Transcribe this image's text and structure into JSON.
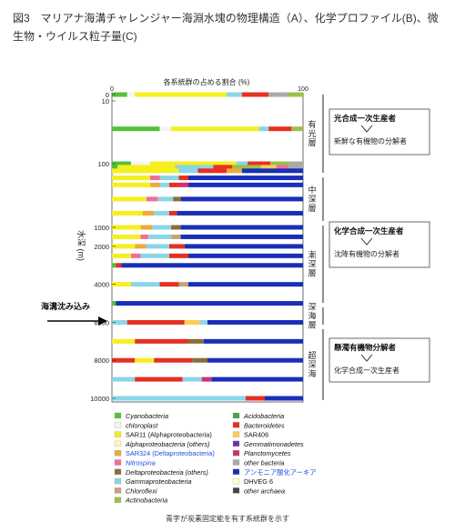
{
  "caption": "図3　マリアナ海溝チャレンジャー海淵水塊の物理構造（A）、化学プロファイル(B)、微生物・ウイルス粒子量(C)",
  "footnote": "青字が炭素固定能を有す系統群を示す",
  "colors": {
    "Cyanobacteria": "#53c23a",
    "chloroplast": "#f5f5f5",
    "SAR11 (Alphaproteobacteria)": "#f5ef1e",
    "Alphaproteobacteria (others)": "#fff9a8",
    "SAR324 (Deltaproteobacteria)": "#f2a83a",
    "Nitrospina": "#f26c9a",
    "Deltaproteobacteria (others)": "#8a6d3b",
    "Gammaproteobacteria": "#8ad6e8",
    "Chloroflexi": "#c9a27a",
    "Actinobacteria": "#9bc04a",
    "Acidobacteria": "#4ea34a",
    "Bacteroidetes": "#e63020",
    "SAR406": "#ffcc55",
    "Gemmatimonadetes": "#7030a0",
    "Planctomycetes": "#d03070",
    "other bacteria": "#aaaaaa",
    "アンモニア酸化アーキア": "#1a2fb8",
    "DHVEG 6": "#ffffcc",
    "other archaea": "#444444"
  },
  "chart_data": {
    "type": "bar",
    "orientation": "horizontal-stacked",
    "title": "各系統群の占める割合 (%)",
    "xlim": [
      0,
      100
    ],
    "x_ticks": [
      0,
      100
    ],
    "ylabel": "水深 (m)",
    "y_ticks": [
      "0",
      "10",
      "100",
      "1000",
      "2000",
      "4000",
      "6000",
      "8000",
      "10000"
    ],
    "depth_marker": "海溝沈み込み",
    "zones": [
      {
        "name": "有光層",
        "box_title": "光合成一次生産者",
        "box_text": "新鮮な有機物の分解者"
      },
      {
        "name": "中深層",
        "box_title": "",
        "box_text": ""
      },
      {
        "name": "漸深層",
        "box_title": "化学合成一次生産者",
        "box_text": "沈降有機物の分解者"
      },
      {
        "name": "深海層",
        "box_title": "",
        "box_text": ""
      },
      {
        "name": "超深海",
        "box_title": "懸濁有機物分解者",
        "box_text": "化学合成一次生産者"
      }
    ],
    "legend": [
      {
        "label": "Cyanobacteria",
        "carbon_fixing": false
      },
      {
        "label": "chloroplast",
        "carbon_fixing": false
      },
      {
        "label": "SAR11 (Alphaproteobacteria)",
        "carbon_fixing": false
      },
      {
        "label": "Alphaproteobacteria (others)",
        "carbon_fixing": false
      },
      {
        "label": "SAR324 (Deltaproteobacteria)",
        "carbon_fixing": true
      },
      {
        "label": "Nitrospina",
        "carbon_fixing": true
      },
      {
        "label": "Deltaproteobacteria (others)",
        "carbon_fixing": false
      },
      {
        "label": "Gammaproteobacteria",
        "carbon_fixing": false
      },
      {
        "label": "Chloroflexi",
        "carbon_fixing": false
      },
      {
        "label": "Actinobacteria",
        "carbon_fixing": false
      },
      {
        "label": "Acidobacteria",
        "carbon_fixing": false
      },
      {
        "label": "Bacteroidetes",
        "carbon_fixing": false
      },
      {
        "label": "SAR406",
        "carbon_fixing": false
      },
      {
        "label": "Gemmatimonadetes",
        "carbon_fixing": false
      },
      {
        "label": "Planctomycetes",
        "carbon_fixing": false
      },
      {
        "label": "other bacteria",
        "carbon_fixing": false
      },
      {
        "label": "アンモニア酸化アーキア",
        "carbon_fixing": true
      },
      {
        "label": "DHVEG 6",
        "carbon_fixing": false
      },
      {
        "label": "other archaea",
        "carbon_fixing": false
      }
    ],
    "samples": [
      {
        "depth": 0,
        "segments": [
          [
            "Cyanobacteria",
            8
          ],
          [
            "chloroplast",
            4
          ],
          [
            "SAR11 (Alphaproteobacteria)",
            48
          ],
          [
            "Gammaproteobacteria",
            8
          ],
          [
            "Bacteroidetes",
            14
          ],
          [
            "other bacteria",
            10
          ],
          [
            "Actinobacteria",
            8
          ]
        ]
      },
      {
        "depth": 50,
        "segments": [
          [
            "Cyanobacteria",
            25
          ],
          [
            "chloroplast",
            6
          ],
          [
            "SAR11 (Alphaproteobacteria)",
            46
          ],
          [
            "Gammaproteobacteria",
            5
          ],
          [
            "Bacteroidetes",
            12
          ],
          [
            "Actinobacteria",
            6
          ]
        ]
      },
      {
        "depth": 100,
        "segments": [
          [
            "Cyanobacteria",
            10
          ],
          [
            "chloroplast",
            10
          ],
          [
            "SAR11 (Alphaproteobacteria)",
            45
          ],
          [
            "Gammaproteobacteria",
            6
          ],
          [
            "Bacteroidetes",
            12
          ],
          [
            "Actinobacteria",
            10
          ],
          [
            "other bacteria",
            7
          ]
        ]
      },
      {
        "depth": 150,
        "segments": [
          [
            "Cyanobacteria",
            3
          ],
          [
            "SAR11 (Alphaproteobacteria)",
            30
          ],
          [
            "Gammaproteobacteria",
            20
          ],
          [
            "Bacteroidetes",
            10
          ],
          [
            "Actinobacteria",
            15
          ],
          [
            "SAR406",
            8
          ],
          [
            "Nitrospina",
            6
          ],
          [
            "other bacteria",
            8
          ]
        ]
      },
      {
        "depth": 200,
        "segments": [
          [
            "SAR11 (Alphaproteobacteria)",
            35
          ],
          [
            "Gammaproteobacteria",
            10
          ],
          [
            "Bacteroidetes",
            15
          ],
          [
            "SAR324 (Deltaproteobacteria)",
            8
          ],
          [
            "アンモニア酸化アーキア",
            32
          ]
        ]
      },
      {
        "depth": 300,
        "segments": [
          [
            "SAR11 (Alphaproteobacteria)",
            20
          ],
          [
            "Nitrospina",
            5
          ],
          [
            "Gammaproteobacteria",
            10
          ],
          [
            "Bacteroidetes",
            5
          ],
          [
            "アンモニア酸化アーキア",
            60
          ]
        ]
      },
      {
        "depth": 400,
        "segments": [
          [
            "SAR11 (Alphaproteobacteria)",
            20
          ],
          [
            "SAR324 (Deltaproteobacteria)",
            5
          ],
          [
            "Gammaproteobacteria",
            5
          ],
          [
            "Bacteroidetes",
            5
          ],
          [
            "Planctomycetes",
            5
          ],
          [
            "アンモニア酸化アーキア",
            60
          ]
        ]
      },
      {
        "depth": 600,
        "segments": [
          [
            "SAR11 (Alphaproteobacteria)",
            18
          ],
          [
            "Nitrospina",
            6
          ],
          [
            "Gammaproteobacteria",
            8
          ],
          [
            "Deltaproteobacteria (others)",
            4
          ],
          [
            "アンモニア酸化アーキア",
            64
          ]
        ]
      },
      {
        "depth": 800,
        "segments": [
          [
            "SAR11 (Alphaproteobacteria)",
            16
          ],
          [
            "SAR324 (Deltaproteobacteria)",
            6
          ],
          [
            "Gammaproteobacteria",
            8
          ],
          [
            "Bacteroidetes",
            4
          ],
          [
            "アンモニア酸化アーキア",
            66
          ]
        ]
      },
      {
        "depth": 1000,
        "segments": [
          [
            "SAR11 (Alphaproteobacteria)",
            15
          ],
          [
            "SAR324 (Deltaproteobacteria)",
            6
          ],
          [
            "Gammaproteobacteria",
            10
          ],
          [
            "Deltaproteobacteria (others)",
            5
          ],
          [
            "アンモニア酸化アーキア",
            64
          ]
        ]
      },
      {
        "depth": 1500,
        "segments": [
          [
            "SAR11 (Alphaproteobacteria)",
            15
          ],
          [
            "Nitrospina",
            4
          ],
          [
            "Gammaproteobacteria",
            12
          ],
          [
            "Chloroflexi",
            5
          ],
          [
            "アンモニア酸化アーキア",
            64
          ]
        ]
      },
      {
        "depth": 2000,
        "segments": [
          [
            "SAR11 (Alphaproteobacteria)",
            12
          ],
          [
            "SAR324 (Deltaproteobacteria)",
            6
          ],
          [
            "Gammaproteobacteria",
            12
          ],
          [
            "Bacteroidetes",
            8
          ],
          [
            "アンモニア酸化アーキア",
            62
          ]
        ]
      },
      {
        "depth": 2500,
        "segments": [
          [
            "SAR11 (Alphaproteobacteria)",
            10
          ],
          [
            "Nitrospina",
            5
          ],
          [
            "Gammaproteobacteria",
            15
          ],
          [
            "Bacteroidetes",
            10
          ],
          [
            "アンモニア酸化アーキア",
            60
          ]
        ]
      },
      {
        "depth": 3000,
        "segments": [
          [
            "Cyanobacteria",
            2
          ],
          [
            "Bacteroidetes",
            3
          ],
          [
            "アンモニア酸化アーキア",
            95
          ]
        ]
      },
      {
        "depth": 4000,
        "segments": [
          [
            "SAR11 (Alphaproteobacteria)",
            10
          ],
          [
            "Gammaproteobacteria",
            15
          ],
          [
            "Bacteroidetes",
            10
          ],
          [
            "Chloroflexi",
            5
          ],
          [
            "アンモニア酸化アーキア",
            60
          ]
        ]
      },
      {
        "depth": 5000,
        "segments": [
          [
            "Cyanobacteria",
            2
          ],
          [
            "アンモニア酸化アーキア",
            98
          ]
        ]
      },
      {
        "depth": 6000,
        "segments": [
          [
            "Gammaproteobacteria",
            8
          ],
          [
            "Bacteroidetes",
            30
          ],
          [
            "SAR406",
            8
          ],
          [
            "Gammaproteobacteria",
            4
          ],
          [
            "アンモニア酸化アーキア",
            50
          ]
        ]
      },
      {
        "depth": 7000,
        "segments": [
          [
            "SAR11 (Alphaproteobacteria)",
            12
          ],
          [
            "Bacteroidetes",
            28
          ],
          [
            "Deltaproteobacteria (others)",
            8
          ],
          [
            "アンモニア酸化アーキア",
            52
          ]
        ]
      },
      {
        "depth": 8000,
        "segments": [
          [
            "Bacteroidetes",
            12
          ],
          [
            "SAR11 (Alphaproteobacteria)",
            10
          ],
          [
            "Bacteroidetes",
            20
          ],
          [
            "Deltaproteobacteria (others)",
            8
          ],
          [
            "アンモニア酸化アーキア",
            50
          ]
        ]
      },
      {
        "depth": 9000,
        "segments": [
          [
            "Gammaproteobacteria",
            12
          ],
          [
            "Bacteroidetes",
            25
          ],
          [
            "Gammaproteobacteria",
            10
          ],
          [
            "Planctomycetes",
            5
          ],
          [
            "アンモニア酸化アーキア",
            48
          ]
        ]
      },
      {
        "depth": 10000,
        "segments": [
          [
            "Gammaproteobacteria",
            70
          ],
          [
            "Bacteroidetes",
            10
          ],
          [
            "アンモニア酸化アーキア",
            20
          ]
        ]
      }
    ]
  }
}
